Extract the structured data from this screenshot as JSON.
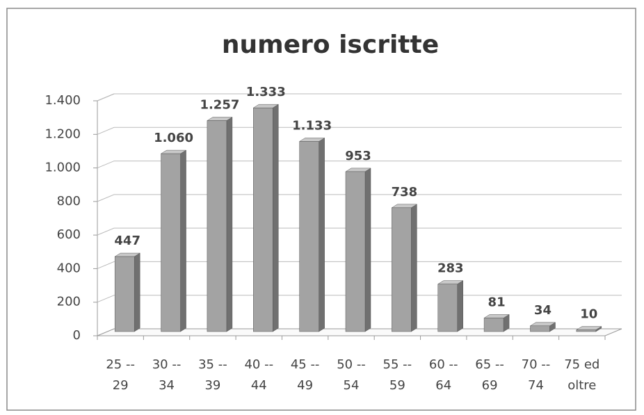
{
  "chart_data": {
    "type": "bar",
    "title": "numero iscritte",
    "categories": [
      "25 -- 29",
      "30 -- 34",
      "35 -- 39",
      "40 -- 44",
      "45 -- 49",
      "50 -- 54",
      "55 -- 59",
      "60 -- 64",
      "65 -- 69",
      "70 -- 74",
      "75 ed oltre"
    ],
    "values": [
      447,
      1060,
      1257,
      1333,
      1133,
      953,
      738,
      283,
      81,
      34,
      10
    ],
    "value_labels": [
      "447",
      "1.060",
      "1.257",
      "1.333",
      "1.133",
      "953",
      "738",
      "283",
      "81",
      "34",
      "10"
    ],
    "color": "#a3a3a3",
    "ylim": [
      0,
      1400
    ],
    "yticks": [
      0,
      200,
      400,
      600,
      800,
      {
        "value": 1000,
        "label": "1.000"
      },
      {
        "value": 1200,
        "label": "1.200"
      },
      {
        "value": 1400,
        "label": "1.400"
      }
    ],
    "grid": true
  }
}
